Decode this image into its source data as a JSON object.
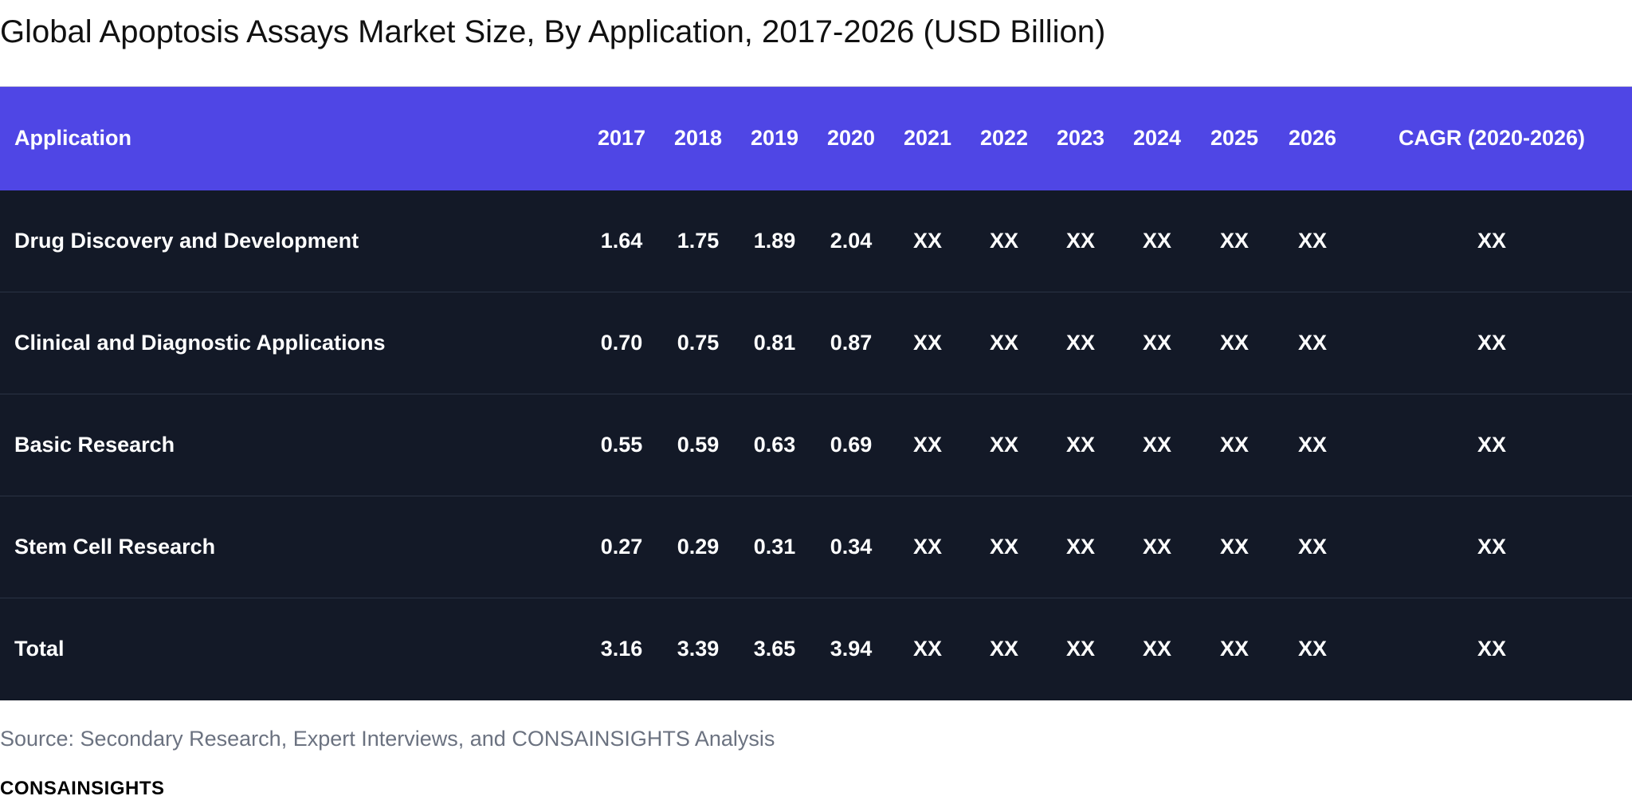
{
  "title": "Global Apoptosis Assays Market Size, By Application, 2017-2026 (USD Billion)",
  "table": {
    "headers": [
      "Application",
      "2017",
      "2018",
      "2019",
      "2020",
      "2021",
      "2022",
      "2023",
      "2024",
      "2025",
      "2026",
      "CAGR (2020-2026)"
    ],
    "rows": [
      [
        "Drug Discovery and Development",
        "1.64",
        "1.75",
        "1.89",
        "2.04",
        "XX",
        "XX",
        "XX",
        "XX",
        "XX",
        "XX",
        "XX"
      ],
      [
        "Clinical and Diagnostic Applications",
        "0.70",
        "0.75",
        "0.81",
        "0.87",
        "XX",
        "XX",
        "XX",
        "XX",
        "XX",
        "XX",
        "XX"
      ],
      [
        "Basic Research",
        "0.55",
        "0.59",
        "0.63",
        "0.69",
        "XX",
        "XX",
        "XX",
        "XX",
        "XX",
        "XX",
        "XX"
      ],
      [
        "Stem Cell Research",
        "0.27",
        "0.29",
        "0.31",
        "0.34",
        "XX",
        "XX",
        "XX",
        "XX",
        "XX",
        "XX",
        "XX"
      ],
      [
        "Total",
        "3.16",
        "3.39",
        "3.65",
        "3.94",
        "XX",
        "XX",
        "XX",
        "XX",
        "XX",
        "XX",
        "XX"
      ]
    ]
  },
  "source": "Source: Secondary Research, Expert Interviews, and CONSAINSIGHTS Analysis",
  "logo_text": "CONSAINSIGHTS",
  "colors": {
    "header_bg": "#4f46e5",
    "body_bg": "#131927",
    "row_divider": "#2a3344",
    "text_light": "#ffffff",
    "source_text": "#6b7280"
  }
}
